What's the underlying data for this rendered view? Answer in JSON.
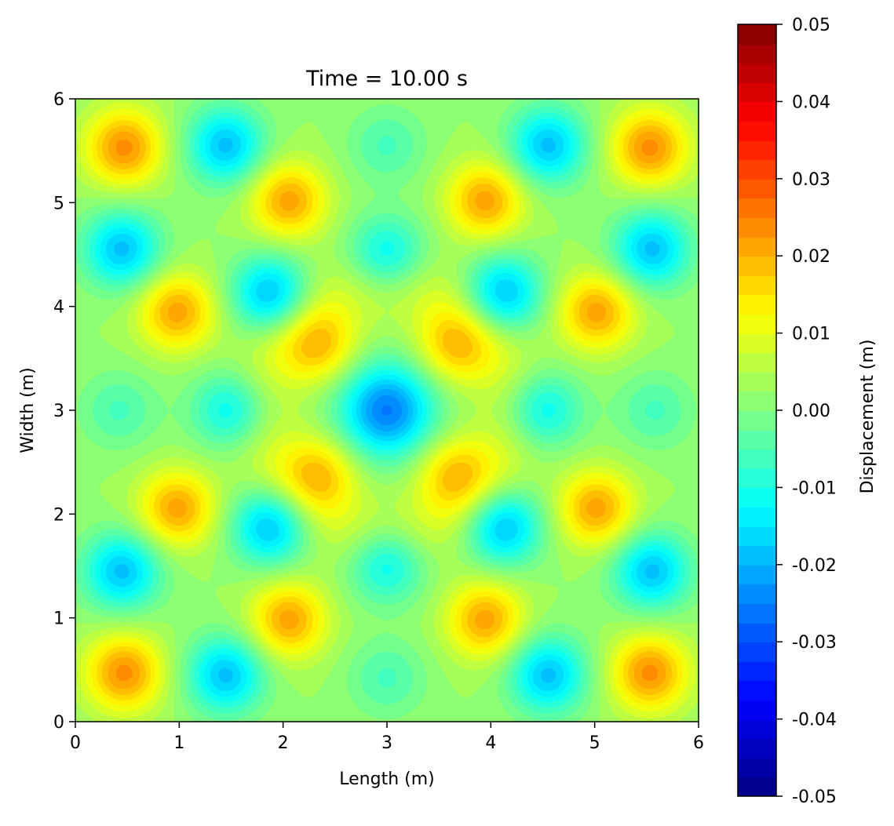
{
  "chart_data": {
    "type": "heatmap",
    "title": "Time = 10.00 s",
    "xlabel": "Length (m)",
    "ylabel": "Width (m)",
    "xlim": [
      0,
      6
    ],
    "ylim": [
      0,
      6
    ],
    "x_ticks": [
      0,
      1,
      2,
      3,
      4,
      5,
      6
    ],
    "x_tick_labels": [
      "0",
      "1",
      "2",
      "3",
      "4",
      "5",
      "6"
    ],
    "y_ticks": [
      0,
      1,
      2,
      3,
      4,
      5,
      6
    ],
    "y_tick_labels": [
      "0",
      "1",
      "2",
      "3",
      "4",
      "5",
      "6"
    ],
    "colormap": "jet",
    "colorbar": {
      "label": "Displacement (m)",
      "range": [
        -0.05,
        0.05
      ],
      "levels": 40,
      "ticks": [
        0.05,
        0.04,
        0.03,
        0.02,
        0.01,
        0.0,
        -0.01,
        -0.02,
        -0.03,
        -0.04,
        -0.05
      ],
      "tick_labels": [
        "0.05",
        "0.04",
        "0.03",
        "0.02",
        "0.01",
        "0.00",
        "-0.01",
        "-0.02",
        "-0.03",
        "-0.04",
        "-0.05"
      ]
    },
    "features": [
      {
        "x": 0.47,
        "y": 5.53,
        "value": 0.021
      },
      {
        "x": 5.53,
        "y": 5.53,
        "value": 0.021
      },
      {
        "x": 0.47,
        "y": 0.47,
        "value": 0.021
      },
      {
        "x": 5.53,
        "y": 0.47,
        "value": 0.021
      },
      {
        "x": 2.05,
        "y": 5.02,
        "value": 0.019
      },
      {
        "x": 3.95,
        "y": 5.02,
        "value": 0.019
      },
      {
        "x": 2.05,
        "y": 0.98,
        "value": 0.019
      },
      {
        "x": 3.95,
        "y": 0.98,
        "value": 0.019
      },
      {
        "x": 0.98,
        "y": 3.95,
        "value": 0.019
      },
      {
        "x": 5.02,
        "y": 3.95,
        "value": 0.019
      },
      {
        "x": 0.98,
        "y": 2.05,
        "value": 0.019
      },
      {
        "x": 5.02,
        "y": 2.05,
        "value": 0.019
      },
      {
        "x": 2.35,
        "y": 3.62,
        "value": 0.015
      },
      {
        "x": 3.65,
        "y": 3.62,
        "value": 0.015
      },
      {
        "x": 2.35,
        "y": 2.38,
        "value": 0.015
      },
      {
        "x": 3.65,
        "y": 2.38,
        "value": 0.015
      },
      {
        "x": 1.45,
        "y": 5.55,
        "value": -0.021
      },
      {
        "x": 4.55,
        "y": 5.55,
        "value": -0.021
      },
      {
        "x": 1.45,
        "y": 0.45,
        "value": -0.021
      },
      {
        "x": 4.55,
        "y": 0.45,
        "value": -0.021
      },
      {
        "x": 0.45,
        "y": 4.55,
        "value": -0.021
      },
      {
        "x": 5.55,
        "y": 4.55,
        "value": -0.021
      },
      {
        "x": 0.45,
        "y": 1.45,
        "value": -0.021
      },
      {
        "x": 5.55,
        "y": 1.45,
        "value": -0.021
      },
      {
        "x": 1.88,
        "y": 4.12,
        "value": -0.022
      },
      {
        "x": 4.12,
        "y": 4.12,
        "value": -0.022
      },
      {
        "x": 1.88,
        "y": 1.88,
        "value": -0.022
      },
      {
        "x": 4.12,
        "y": 1.88,
        "value": -0.022
      },
      {
        "x": 3.0,
        "y": 4.5,
        "value": -0.016
      },
      {
        "x": 3.0,
        "y": 1.52,
        "value": -0.016
      },
      {
        "x": 1.5,
        "y": 3.0,
        "value": -0.016
      },
      {
        "x": 4.5,
        "y": 3.0,
        "value": -0.016
      },
      {
        "x": 3.0,
        "y": 3.0,
        "value": -0.028
      },
      {
        "x": 3.0,
        "y": 5.55,
        "value": -0.008
      },
      {
        "x": 3.0,
        "y": 0.42,
        "value": -0.008
      },
      {
        "x": 0.42,
        "y": 3.0,
        "value": -0.008
      },
      {
        "x": 5.58,
        "y": 3.0,
        "value": -0.008
      }
    ]
  }
}
